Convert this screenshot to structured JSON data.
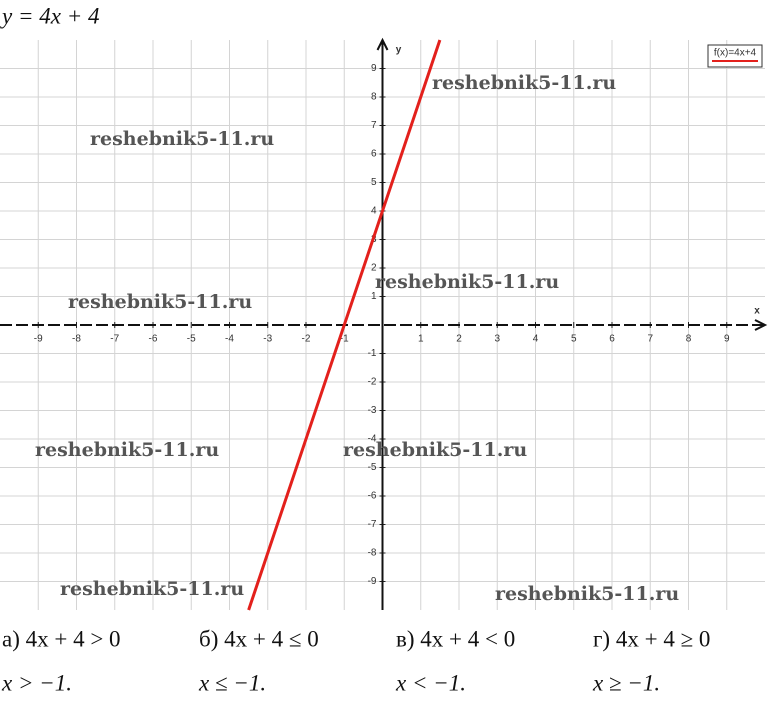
{
  "chart_data": {
    "type": "line",
    "title": "y = 4x + 4",
    "x": [
      -3.5,
      1.5
    ],
    "series": [
      {
        "name": "f(x)=4x+4",
        "color": "#e3201c",
        "values": [
          -10,
          10
        ]
      }
    ],
    "xlabel": "x",
    "ylabel": "y",
    "xlim": [
      -10,
      10
    ],
    "ylim": [
      -10,
      10
    ],
    "xticks": [
      -9,
      -8,
      -7,
      -6,
      -5,
      -4,
      -3,
      -2,
      -1,
      1,
      2,
      3,
      4,
      5,
      6,
      7,
      8,
      9
    ],
    "yticks": [
      -9,
      -8,
      -7,
      -6,
      -5,
      -4,
      -3,
      -2,
      -1,
      1,
      2,
      3,
      4,
      5,
      6,
      7,
      8,
      9
    ],
    "grid": true,
    "legend": "top-right",
    "annotations": [
      "reshebnik5-11.ru",
      "reshebnik5-11.ru",
      "reshebnik5-11.ru",
      "reshebnik5-11.ru",
      "reshebnik5-11.ru",
      "reshebnik5-11.ru",
      "reshebnik5-11.ru",
      "reshebnik5-11.ru"
    ]
  },
  "answers": [
    {
      "inequality": "а) 4x + 4 > 0",
      "solution": "x > −1."
    },
    {
      "inequality": "б) 4x + 4 ≤ 0",
      "solution": "x ≤ −1."
    },
    {
      "inequality": "в) 4x + 4 < 0",
      "solution": "x < −1."
    },
    {
      "inequality": "г) 4x + 4 ≥ 0",
      "solution": "x ≥ −1."
    }
  ]
}
